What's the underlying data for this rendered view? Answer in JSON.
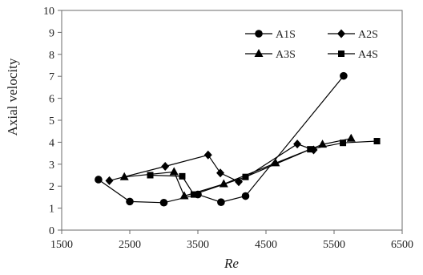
{
  "chart_data": {
    "type": "line",
    "title": "",
    "xlabel": "Re",
    "ylabel": "Axial velocity",
    "xlim": [
      1500,
      6500
    ],
    "ylim": [
      0,
      10
    ],
    "xticks": [
      "1500",
      "2500",
      "3500",
      "4500",
      "5500",
      "6500"
    ],
    "yticks": [
      "0",
      "1",
      "2",
      "3",
      "4",
      "5",
      "6",
      "7",
      "8",
      "9",
      "10"
    ],
    "grid": false,
    "legend": "top-right",
    "series": [
      {
        "name": "A1S",
        "marker": "circle",
        "color": "#000000",
        "points": [
          [
            2040,
            2.3
          ],
          [
            2500,
            1.3
          ],
          [
            3000,
            1.25
          ],
          [
            3500,
            1.62
          ],
          [
            3840,
            1.27
          ],
          [
            4200,
            1.55
          ],
          [
            5640,
            7.02
          ]
        ]
      },
      {
        "name": "A2S",
        "marker": "diamond",
        "color": "#000000",
        "points": [
          [
            2200,
            2.25
          ],
          [
            3020,
            2.9
          ],
          [
            3650,
            3.42
          ],
          [
            3830,
            2.6
          ],
          [
            4100,
            2.2
          ],
          [
            4960,
            3.92
          ],
          [
            5200,
            3.65
          ]
        ]
      },
      {
        "name": "A3S",
        "marker": "triangle",
        "color": "#000000",
        "points": [
          [
            2420,
            2.42
          ],
          [
            3150,
            2.65
          ],
          [
            3300,
            1.55
          ],
          [
            3880,
            2.1
          ],
          [
            4640,
            3.05
          ],
          [
            5330,
            3.9
          ],
          [
            5750,
            4.17
          ]
        ]
      },
      {
        "name": "A4S",
        "marker": "square",
        "color": "#000000",
        "points": [
          [
            2800,
            2.5
          ],
          [
            3270,
            2.45
          ],
          [
            3440,
            1.62
          ],
          [
            4200,
            2.42
          ],
          [
            5150,
            3.68
          ],
          [
            5630,
            3.97
          ],
          [
            6130,
            4.05
          ]
        ]
      }
    ]
  }
}
